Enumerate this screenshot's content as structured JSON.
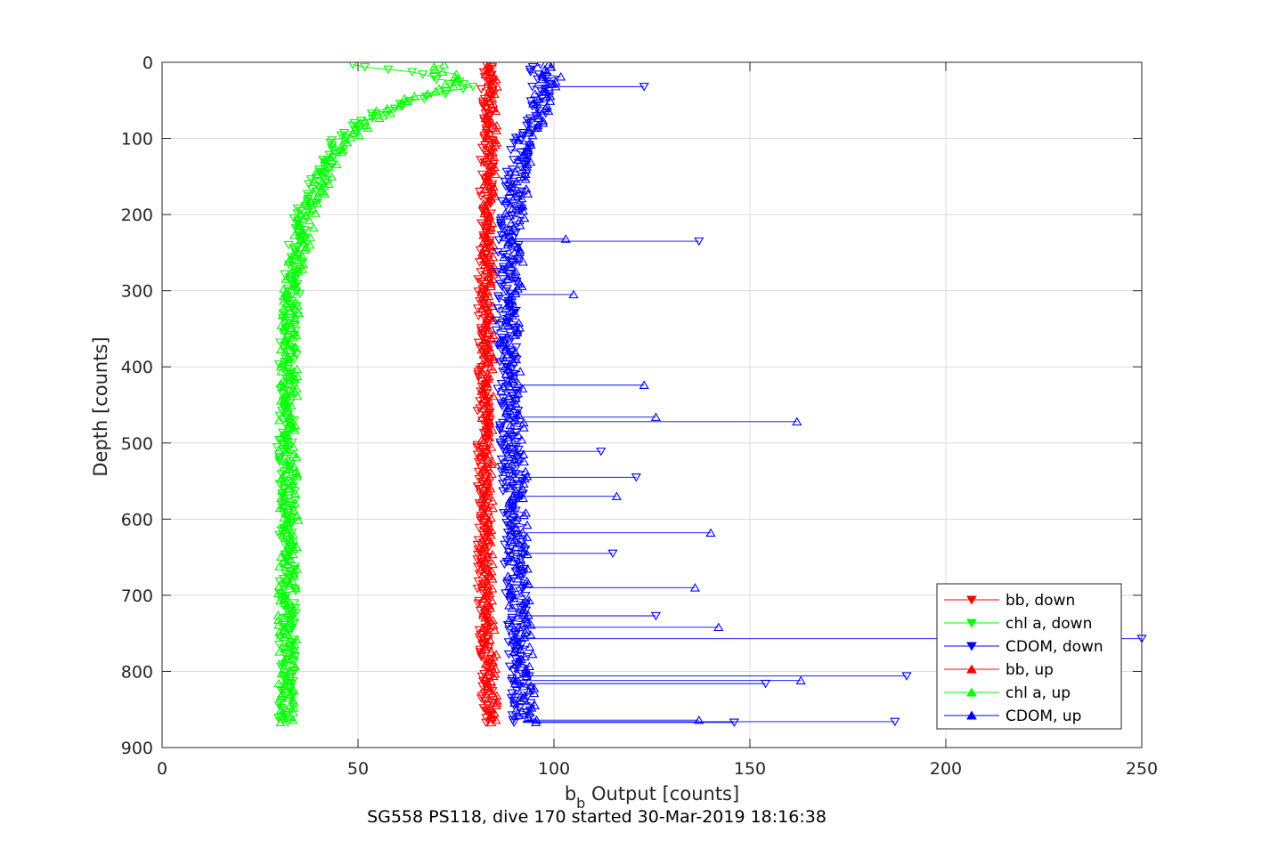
{
  "chart_data": {
    "type": "line",
    "xlabel_main": "b",
    "xlabel_sub": "b",
    "xlabel_rest": " Output [counts]",
    "ylabel": "Depth [counts]",
    "caption": "SG558 PS118, dive 170 started 30-Mar-2019 18:16:38",
    "xlim": [
      0,
      250
    ],
    "ylim": [
      900,
      0
    ],
    "y_reversed": true,
    "grid": true,
    "legend_position": "bottom-right",
    "x_ticks": [
      "0",
      "50",
      "100",
      "150",
      "200",
      "250"
    ],
    "y_ticks": [
      "0",
      "100",
      "200",
      "300",
      "400",
      "500",
      "600",
      "700",
      "800",
      "900"
    ],
    "series": [
      {
        "name": "bb, down",
        "color": "#ff0000",
        "marker": "triangle-down",
        "profile": [
          [
            0,
            83
          ],
          [
            50,
            83
          ],
          [
            100,
            83
          ],
          [
            200,
            82.5
          ],
          [
            300,
            82
          ],
          [
            400,
            82
          ],
          [
            500,
            82
          ],
          [
            600,
            82
          ],
          [
            700,
            82
          ],
          [
            800,
            83
          ],
          [
            868,
            83
          ]
        ]
      },
      {
        "name": "chl a, down",
        "color": "#00ff00",
        "marker": "triangle-down",
        "profile": [
          [
            3,
            48
          ],
          [
            10,
            58
          ],
          [
            15,
            65
          ],
          [
            25,
            74
          ],
          [
            32,
            78
          ],
          [
            40,
            72
          ],
          [
            60,
            58
          ],
          [
            80,
            50
          ],
          [
            100,
            45
          ],
          [
            150,
            40
          ],
          [
            200,
            36
          ],
          [
            250,
            34
          ],
          [
            300,
            33
          ],
          [
            400,
            32
          ],
          [
            500,
            31.5
          ],
          [
            600,
            32
          ],
          [
            700,
            32
          ],
          [
            800,
            32
          ],
          [
            868,
            31.5
          ]
        ]
      },
      {
        "name": "CDOM, down",
        "color": "#0000ff",
        "marker": "triangle-down",
        "profile": [
          [
            3,
            95
          ],
          [
            20,
            97
          ],
          [
            40,
            97
          ],
          [
            60,
            96
          ],
          [
            80,
            94
          ],
          [
            100,
            92
          ],
          [
            150,
            90
          ],
          [
            200,
            89
          ],
          [
            300,
            88
          ],
          [
            400,
            88
          ],
          [
            500,
            89
          ],
          [
            600,
            90
          ],
          [
            700,
            90
          ],
          [
            800,
            91
          ],
          [
            868,
            92
          ]
        ]
      },
      {
        "name": "bb, up",
        "color": "#ff0000",
        "marker": "triangle-up",
        "profile": [
          [
            0,
            84
          ],
          [
            50,
            84
          ],
          [
            100,
            84
          ],
          [
            200,
            83.5
          ],
          [
            300,
            83
          ],
          [
            400,
            83
          ],
          [
            500,
            83
          ],
          [
            600,
            83
          ],
          [
            700,
            83
          ],
          [
            800,
            84
          ],
          [
            868,
            84
          ]
        ]
      },
      {
        "name": "chl a, up",
        "color": "#00ff00",
        "marker": "triangle-up",
        "profile": [
          [
            3,
            70
          ],
          [
            10,
            72
          ],
          [
            20,
            75
          ],
          [
            30,
            74
          ],
          [
            45,
            65
          ],
          [
            60,
            58
          ],
          [
            80,
            52
          ],
          [
            100,
            47
          ],
          [
            150,
            41
          ],
          [
            200,
            37
          ],
          [
            250,
            35
          ],
          [
            300,
            33
          ],
          [
            400,
            32.5
          ],
          [
            500,
            32
          ],
          [
            600,
            32.5
          ],
          [
            700,
            32
          ],
          [
            800,
            32
          ],
          [
            868,
            32
          ]
        ]
      },
      {
        "name": "CDOM, up",
        "color": "#0000ff",
        "marker": "triangle-up",
        "profile": [
          [
            3,
            98
          ],
          [
            20,
            99
          ],
          [
            40,
            98
          ],
          [
            60,
            97
          ],
          [
            80,
            95
          ],
          [
            100,
            93
          ],
          [
            150,
            91
          ],
          [
            200,
            90
          ],
          [
            300,
            89
          ],
          [
            400,
            89
          ],
          [
            500,
            90
          ],
          [
            600,
            91
          ],
          [
            700,
            91
          ],
          [
            800,
            92
          ],
          [
            868,
            93
          ]
        ]
      }
    ],
    "outliers": [
      {
        "series": 2,
        "depth": 32,
        "value": 123
      },
      {
        "series": 5,
        "depth": 232,
        "value": 103
      },
      {
        "series": 2,
        "depth": 235,
        "value": 137
      },
      {
        "series": 5,
        "depth": 305,
        "value": 105
      },
      {
        "series": 5,
        "depth": 424,
        "value": 123
      },
      {
        "series": 5,
        "depth": 466,
        "value": 126
      },
      {
        "series": 5,
        "depth": 472,
        "value": 162
      },
      {
        "series": 2,
        "depth": 511,
        "value": 112
      },
      {
        "series": 2,
        "depth": 545,
        "value": 121
      },
      {
        "series": 5,
        "depth": 570,
        "value": 116
      },
      {
        "series": 5,
        "depth": 618,
        "value": 140
      },
      {
        "series": 2,
        "depth": 645,
        "value": 115
      },
      {
        "series": 5,
        "depth": 690,
        "value": 136
      },
      {
        "series": 2,
        "depth": 727,
        "value": 126
      },
      {
        "series": 5,
        "depth": 742,
        "value": 142
      },
      {
        "series": 2,
        "depth": 757,
        "value": 250
      },
      {
        "series": 2,
        "depth": 806,
        "value": 190
      },
      {
        "series": 5,
        "depth": 812,
        "value": 163
      },
      {
        "series": 2,
        "depth": 816,
        "value": 154
      },
      {
        "series": 2,
        "depth": 866,
        "value": 187
      },
      {
        "series": 2,
        "depth": 867,
        "value": 146
      },
      {
        "series": 5,
        "depth": 864,
        "value": 137
      }
    ]
  }
}
